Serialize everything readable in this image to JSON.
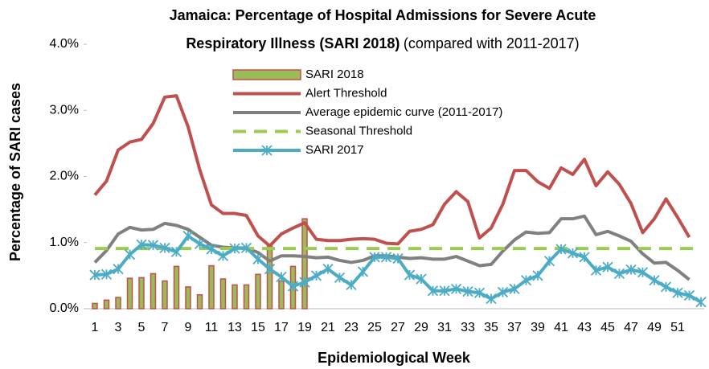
{
  "chart_data": {
    "type": "line",
    "title": [
      "Jamaica: Percentage of Hospital Admissions for Severe Acute",
      "Respiratory Illness (SARI 2018)"
    ],
    "subtitle": "(compared with 2011-2017)",
    "x_label": "Epidemiological Week",
    "y_label": "Percentage of SARI cases",
    "categories": [
      "1",
      null,
      "3",
      null,
      "5",
      null,
      "7",
      null,
      "9",
      null,
      "11",
      null,
      "13",
      null,
      "15",
      null,
      "17",
      null,
      "19",
      null,
      "21",
      null,
      "23",
      null,
      "25",
      null,
      "27",
      null,
      "29",
      null,
      "31",
      null,
      "33",
      null,
      "35",
      null,
      "37",
      null,
      "39",
      null,
      "41",
      null,
      "43",
      null,
      "45",
      null,
      "47",
      null,
      "49",
      null,
      "51",
      null,
      null
    ],
    "ylim": [
      0,
      4
    ],
    "yticks": [
      {
        "value": 0,
        "label": "0.0%"
      },
      {
        "value": 1,
        "label": "1.0%"
      },
      {
        "value": 2,
        "label": "2.0%"
      },
      {
        "value": 3,
        "label": "3.0%"
      },
      {
        "value": 4,
        "label": "4.0%"
      }
    ],
    "series": [
      {
        "name": "SARI 2018",
        "type": "bar",
        "color": "#9bbb59",
        "edge_color": "#c0504d",
        "values": [
          0.08,
          0.13,
          0.17,
          0.46,
          0.47,
          0.53,
          0.42,
          0.64,
          0.33,
          0.21,
          0.65,
          0.45,
          0.36,
          0.36,
          0.52,
          0.95,
          0.42,
          0.64,
          1.36,
          null,
          null,
          null,
          null,
          null,
          null,
          null,
          null,
          null,
          null,
          null,
          null,
          null,
          null,
          null,
          null,
          null,
          null,
          null,
          null,
          null,
          null,
          null,
          null,
          null,
          null,
          null,
          null,
          null,
          null,
          null,
          null,
          null,
          null
        ]
      },
      {
        "name": "Alert Threshold",
        "type": "line",
        "color": "#c0504d",
        "values": [
          1.72,
          1.93,
          2.4,
          2.52,
          2.56,
          2.8,
          3.2,
          3.22,
          2.75,
          2.1,
          1.57,
          1.44,
          1.44,
          1.41,
          1.1,
          0.95,
          1.13,
          1.22,
          1.3,
          1.05,
          1.03,
          1.03,
          1.05,
          1.06,
          1.05,
          0.99,
          0.98,
          1.17,
          1.2,
          1.27,
          1.58,
          1.77,
          1.62,
          1.07,
          1.22,
          1.58,
          2.09,
          2.09,
          1.92,
          1.82,
          2.13,
          2.03,
          2.26,
          1.86,
          2.07,
          1.88,
          1.59,
          1.15,
          1.36,
          1.66,
          1.38,
          1.08,
          null
        ]
      },
      {
        "name": "Average epidemic curve (2011-2017)",
        "type": "line",
        "color": "#808080",
        "values": [
          0.7,
          0.88,
          1.13,
          1.23,
          1.19,
          1.2,
          1.29,
          1.26,
          1.2,
          1.08,
          0.96,
          0.93,
          0.92,
          0.92,
          0.85,
          0.72,
          0.8,
          0.8,
          0.79,
          0.77,
          0.78,
          0.73,
          0.7,
          0.73,
          0.8,
          0.8,
          0.78,
          0.76,
          0.77,
          0.75,
          0.75,
          0.79,
          0.72,
          0.65,
          0.67,
          0.87,
          1.04,
          1.16,
          1.14,
          1.15,
          1.36,
          1.36,
          1.4,
          1.12,
          1.17,
          1.1,
          1.02,
          0.83,
          0.69,
          0.7,
          0.58,
          0.44,
          null
        ]
      },
      {
        "name": "Seasonal Threshold",
        "type": "line",
        "dashed": true,
        "color": "#9bcb4f",
        "values": [
          0.91,
          0.91,
          0.91,
          0.91,
          0.91,
          0.91,
          0.91,
          0.91,
          0.91,
          0.91,
          0.91,
          0.91,
          0.91,
          0.91,
          0.91,
          0.91,
          0.91,
          0.91,
          0.91,
          0.91,
          0.91,
          0.91,
          0.91,
          0.91,
          0.91,
          0.91,
          0.91,
          0.91,
          0.91,
          0.91,
          0.91,
          0.91,
          0.91,
          0.91,
          0.91,
          0.91,
          0.91,
          0.91,
          0.91,
          0.91,
          0.91,
          0.91,
          0.91,
          0.91,
          0.91,
          0.91,
          0.91,
          0.91,
          0.91,
          0.91,
          0.91,
          0.91,
          0.91
        ]
      },
      {
        "name": "SARI 2017",
        "type": "line",
        "marker": "x",
        "color": "#4bacc6",
        "values": [
          0.51,
          0.52,
          0.6,
          0.82,
          0.97,
          0.96,
          0.92,
          0.86,
          1.1,
          0.98,
          0.9,
          0.8,
          0.91,
          0.92,
          0.75,
          0.6,
          0.48,
          0.34,
          0.4,
          0.5,
          0.6,
          0.47,
          0.36,
          0.56,
          0.78,
          0.78,
          0.76,
          0.51,
          0.45,
          0.27,
          0.27,
          0.3,
          0.26,
          0.24,
          0.15,
          0.25,
          0.3,
          0.43,
          0.5,
          0.72,
          0.9,
          0.84,
          0.78,
          0.58,
          0.63,
          0.53,
          0.59,
          0.55,
          0.43,
          0.33,
          0.24,
          0.2,
          0.1
        ]
      }
    ]
  }
}
